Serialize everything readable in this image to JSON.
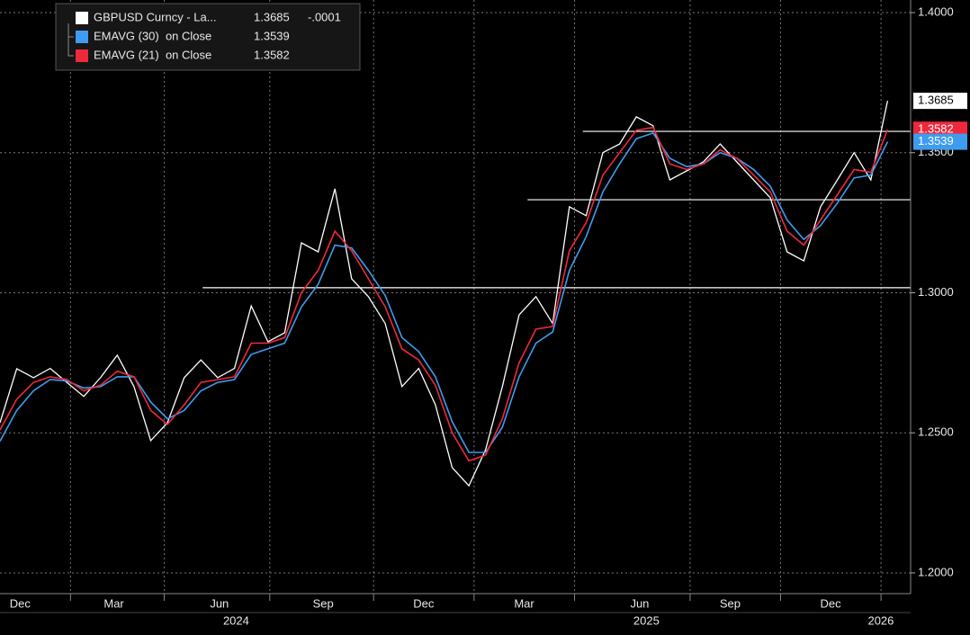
{
  "chart_data": {
    "type": "line",
    "xlim": [
      0,
      54
    ],
    "ylim": [
      1.1926,
      1.4045
    ],
    "yticks": [
      {
        "value": 1.2,
        "label": "1.2000"
      },
      {
        "value": 1.25,
        "label": "1.2500"
      },
      {
        "value": 1.3,
        "label": "1.3000"
      },
      {
        "value": 1.35,
        "label": "1.3500"
      },
      {
        "value": 1.4,
        "label": "1.4000"
      }
    ],
    "xticks": [
      {
        "value": 1.2,
        "label": "Dec"
      },
      {
        "value": 6.8,
        "label": "Mar"
      },
      {
        "value": 13.1,
        "label": "Jun"
      },
      {
        "value": 19.3,
        "label": "Sep"
      },
      {
        "value": 25.3,
        "label": "Dec"
      },
      {
        "value": 31.3,
        "label": "Mar"
      },
      {
        "value": 38.2,
        "label": "Jun"
      },
      {
        "value": 43.6,
        "label": "Sep"
      },
      {
        "value": 49.6,
        "label": "Dec"
      }
    ],
    "year_ticks": [
      {
        "value": 14.1,
        "label": "2024"
      },
      {
        "value": 38.6,
        "label": "2025"
      },
      {
        "value": 52.6,
        "label": "2026"
      }
    ],
    "grid": true,
    "hlines": [
      {
        "y": 1.3018,
        "x_start": 12.1
      },
      {
        "y": 1.3332,
        "x_start": 31.5
      },
      {
        "y": 1.3576,
        "x_start": 34.8
      }
    ],
    "series": [
      {
        "name": "GBPUSD Curncy - La...",
        "color": "#ffffff",
        "last_label": "1.3685",
        "change_label": "-.0001",
        "values": [
          1.2536,
          1.2729,
          1.2697,
          1.273,
          1.268,
          1.263,
          1.2697,
          1.2777,
          1.2665,
          1.2472,
          1.2536,
          1.2697,
          1.276,
          1.2697,
          1.273,
          1.2953,
          1.2825,
          1.2857,
          1.3178,
          1.3146,
          1.3371,
          1.305,
          1.2986,
          1.289,
          1.2665,
          1.273,
          1.26,
          1.2376,
          1.2311,
          1.244,
          1.2665,
          1.2921,
          1.2986,
          1.289,
          1.3307,
          1.3275,
          1.35,
          1.3531,
          1.3628,
          1.3596,
          1.3403,
          1.3435,
          1.3467,
          1.3531,
          1.3467,
          1.3403,
          1.3339,
          1.3146,
          1.3114,
          1.3307,
          1.3403,
          1.35,
          1.3403,
          1.3685
        ]
      },
      {
        "name": "EMAVG (30)  on Close",
        "color": "#3d9cf0",
        "last_label": "1.3539",
        "values": [
          1.247,
          1.258,
          1.265,
          1.269,
          1.2685,
          1.266,
          1.2665,
          1.27,
          1.27,
          1.261,
          1.255,
          1.258,
          1.265,
          1.268,
          1.269,
          1.278,
          1.28,
          1.282,
          1.295,
          1.303,
          1.317,
          1.316,
          1.308,
          1.299,
          1.284,
          1.279,
          1.27,
          1.254,
          1.243,
          1.243,
          1.252,
          1.27,
          1.282,
          1.286,
          1.308,
          1.32,
          1.336,
          1.346,
          1.355,
          1.357,
          1.348,
          1.345,
          1.346,
          1.35,
          1.348,
          1.344,
          1.338,
          1.326,
          1.319,
          1.324,
          1.332,
          1.341,
          1.342,
          1.3539
        ]
      },
      {
        "name": "EMAVG (21)  on Close",
        "color": "#f0283c",
        "last_label": "1.3582",
        "values": [
          1.251,
          1.262,
          1.268,
          1.27,
          1.269,
          1.265,
          1.267,
          1.272,
          1.27,
          1.258,
          1.253,
          1.26,
          1.268,
          1.269,
          1.27,
          1.282,
          1.282,
          1.284,
          1.3,
          1.308,
          1.322,
          1.315,
          1.305,
          1.295,
          1.28,
          1.276,
          1.267,
          1.25,
          1.24,
          1.242,
          1.255,
          1.275,
          1.287,
          1.288,
          1.315,
          1.325,
          1.342,
          1.35,
          1.358,
          1.359,
          1.346,
          1.344,
          1.346,
          1.351,
          1.348,
          1.342,
          1.336,
          1.322,
          1.317,
          1.326,
          1.335,
          1.344,
          1.343,
          1.3582
        ]
      }
    ]
  }
}
